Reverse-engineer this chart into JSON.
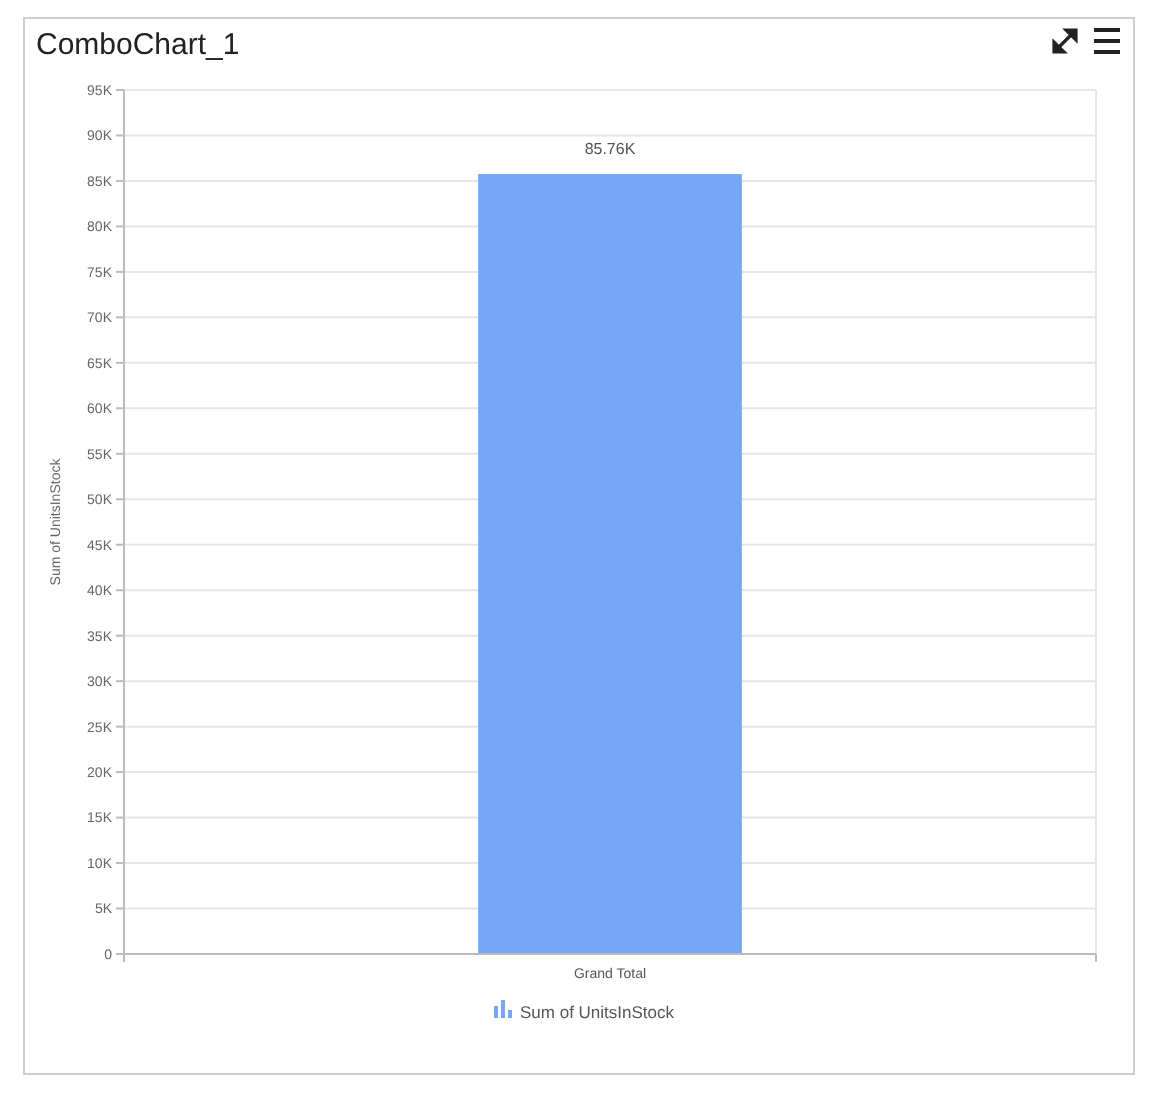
{
  "chart_data": {
    "type": "bar",
    "title": "ComboChart_1",
    "ylabel": "Sum of UnitsInStock",
    "categories": [
      "Grand Total"
    ],
    "series": [
      {
        "name": "Sum of UnitsInStock",
        "color": "#77a6f7",
        "values": [
          85760
        ],
        "value_labels": [
          "85.76K"
        ]
      }
    ],
    "ylim": [
      0,
      95000
    ],
    "yticks": [
      {
        "value": 0,
        "label": "0"
      },
      {
        "value": 5000,
        "label": "5K"
      },
      {
        "value": 10000,
        "label": "10K"
      },
      {
        "value": 15000,
        "label": "15K"
      },
      {
        "value": 20000,
        "label": "20K"
      },
      {
        "value": 25000,
        "label": "25K"
      },
      {
        "value": 30000,
        "label": "30K"
      },
      {
        "value": 35000,
        "label": "35K"
      },
      {
        "value": 40000,
        "label": "40K"
      },
      {
        "value": 45000,
        "label": "45K"
      },
      {
        "value": 50000,
        "label": "50K"
      },
      {
        "value": 55000,
        "label": "55K"
      },
      {
        "value": 60000,
        "label": "60K"
      },
      {
        "value": 65000,
        "label": "65K"
      },
      {
        "value": 70000,
        "label": "70K"
      },
      {
        "value": 75000,
        "label": "75K"
      },
      {
        "value": 80000,
        "label": "80K"
      },
      {
        "value": 85000,
        "label": "85K"
      },
      {
        "value": 90000,
        "label": "90K"
      },
      {
        "value": 95000,
        "label": "95K"
      }
    ],
    "grid": "y",
    "legend": "bottom"
  }
}
